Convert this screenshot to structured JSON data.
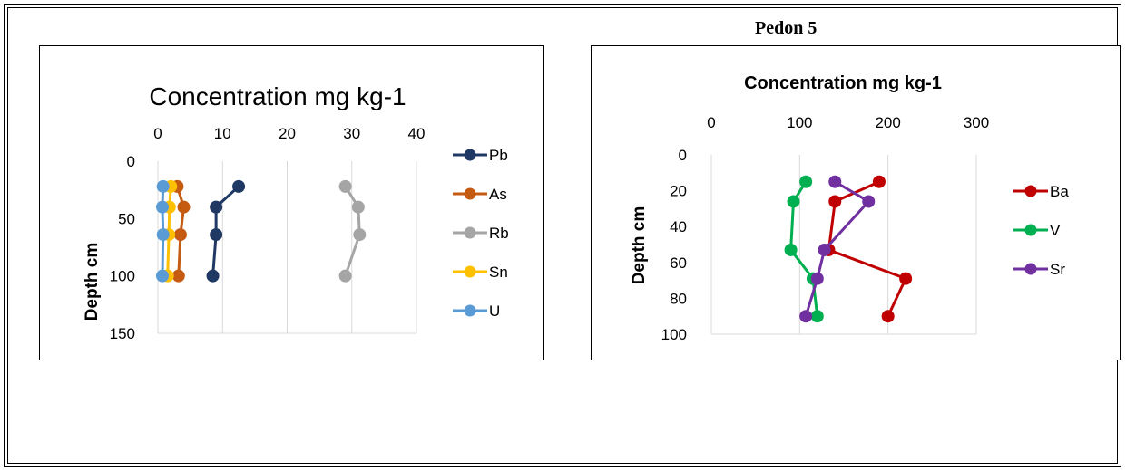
{
  "heading": "Pedon 5",
  "chart_data": [
    {
      "type": "line",
      "title": "Concentration mg kg-1",
      "xlabel": "",
      "ylabel": "Depth cm",
      "xlim": [
        0,
        40
      ],
      "ylim": [
        0,
        150
      ],
      "y_inverted": true,
      "x_axis_position": "top",
      "xticks": [
        "0",
        "10",
        "20",
        "30",
        "40"
      ],
      "yticks": [
        "0",
        "50",
        "100",
        "150"
      ],
      "grid": true,
      "legend_position": "right",
      "series": [
        {
          "name": "Pb",
          "color": "#1f3864",
          "x": [
            12.5,
            9,
            9,
            8.5
          ],
          "y": [
            22,
            40,
            64,
            100
          ]
        },
        {
          "name": "As",
          "color": "#c55a11",
          "x": [
            3,
            4,
            3.5,
            3.2
          ],
          "y": [
            22,
            40,
            64,
            100
          ]
        },
        {
          "name": "Rb",
          "color": "#a5a5a5",
          "x": [
            29,
            31,
            31.2,
            29
          ],
          "y": [
            22,
            40,
            64,
            100
          ]
        },
        {
          "name": "Sn",
          "color": "#ffc000",
          "x": [
            2,
            1.8,
            1.7,
            1.5
          ],
          "y": [
            22,
            40,
            64,
            100
          ]
        },
        {
          "name": "U",
          "color": "#5b9bd5",
          "x": [
            0.8,
            0.7,
            0.8,
            0.7
          ],
          "y": [
            22,
            40,
            64,
            100
          ]
        }
      ]
    },
    {
      "type": "line",
      "title": "Concentration mg kg-1",
      "xlabel": "",
      "ylabel": "Depth cm",
      "xlim": [
        0,
        300
      ],
      "ylim": [
        0,
        100
      ],
      "y_inverted": true,
      "x_axis_position": "top",
      "xticks": [
        "0",
        "100",
        "200",
        "300"
      ],
      "yticks": [
        "0",
        "20",
        "40",
        "60",
        "80",
        "100"
      ],
      "grid": true,
      "legend_position": "right",
      "series": [
        {
          "name": "Ba",
          "color": "#c00000",
          "x": [
            190,
            140,
            133,
            220,
            200
          ],
          "y": [
            15,
            26,
            53,
            69,
            90
          ]
        },
        {
          "name": "V",
          "color": "#00b050",
          "x": [
            107,
            93,
            90,
            115,
            120
          ],
          "y": [
            15,
            26,
            53,
            69,
            90
          ]
        },
        {
          "name": "Sr",
          "color": "#7030a0",
          "x": [
            140,
            178,
            128,
            120,
            107
          ],
          "y": [
            15,
            26,
            53,
            69,
            90
          ]
        }
      ]
    }
  ]
}
